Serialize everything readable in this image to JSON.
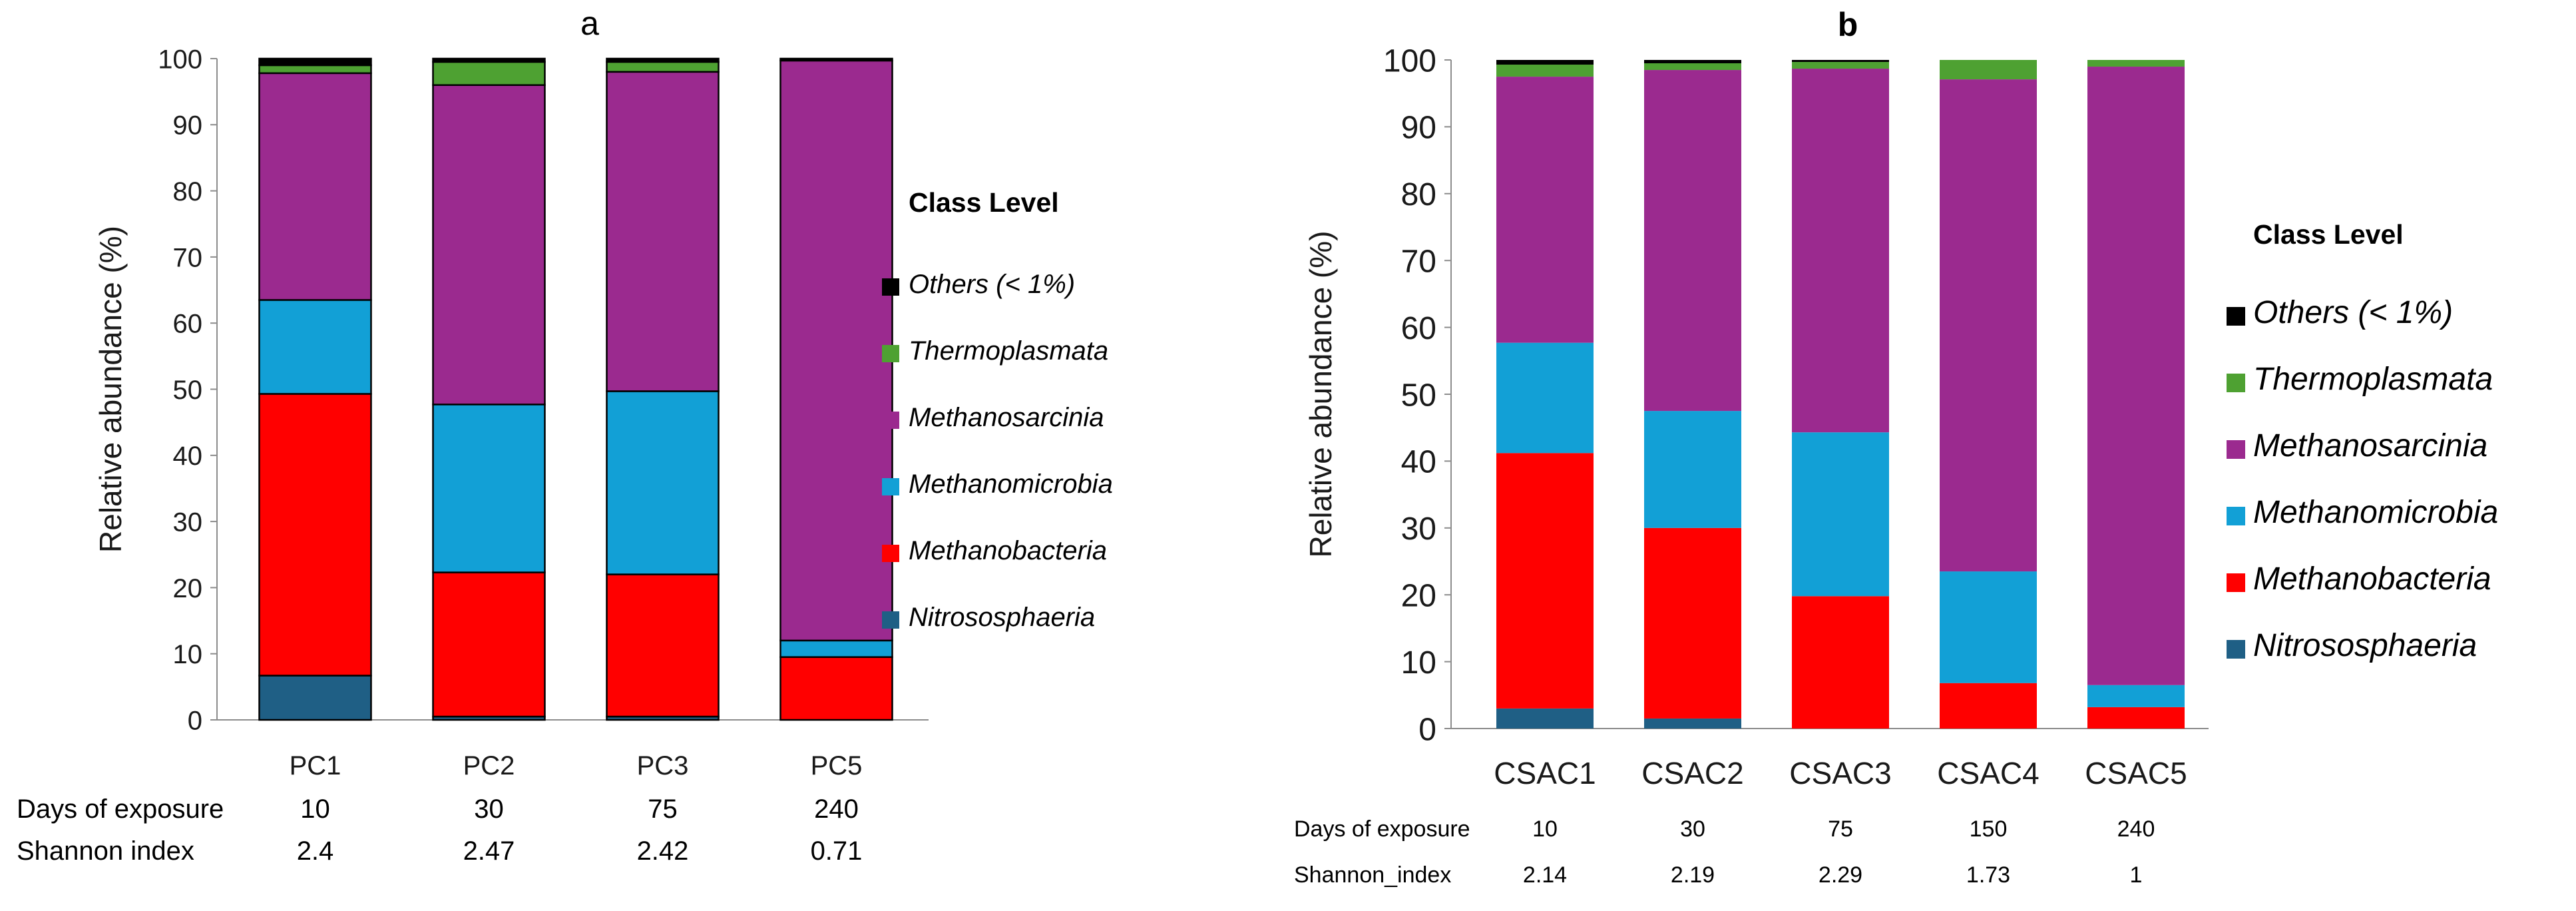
{
  "chart_data": [
    {
      "panel": "a",
      "type": "bar",
      "stacked": true,
      "title": "a",
      "ylabel": "Relative abundance (%)",
      "ylim": [
        0,
        100
      ],
      "yticks": [
        0,
        10,
        20,
        30,
        40,
        50,
        60,
        70,
        80,
        90,
        100
      ],
      "categories": [
        "PC1",
        "PC2",
        "PC3",
        "PC5"
      ],
      "legend_title": "Class Level",
      "legend_position": "right",
      "series": [
        {
          "name": "Nitrososphaeria",
          "color": "#1f5f85",
          "values": [
            6.7,
            0.5,
            0.5,
            0.0
          ]
        },
        {
          "name": "Methanobacteria",
          "color": "#ff0000",
          "values": [
            42.6,
            21.8,
            21.5,
            9.5
          ]
        },
        {
          "name": "Methanomicrobia",
          "color": "#12a0d6",
          "values": [
            14.2,
            25.4,
            27.7,
            2.5
          ]
        },
        {
          "name": "Methanosarcinia",
          "color": "#9b2a8f",
          "values": [
            34.3,
            48.3,
            48.3,
            87.7
          ]
        },
        {
          "name": "Thermoplasmata",
          "color": "#4ea132",
          "values": [
            1.2,
            3.5,
            1.5,
            0.0
          ]
        },
        {
          "name": "Others (< 1%)",
          "color": "#000000",
          "values": [
            1.0,
            0.5,
            0.5,
            0.3
          ]
        }
      ],
      "table_rows": [
        {
          "label": "Days of exposure",
          "values": [
            "10",
            "30",
            "75",
            "240"
          ]
        },
        {
          "label": "Shannon index",
          "values": [
            "2.4",
            "2.47",
            "2.42",
            "0.71"
          ]
        }
      ]
    },
    {
      "panel": "b",
      "type": "bar",
      "stacked": true,
      "title": "b",
      "ylabel": "Relative abundance (%)",
      "ylim": [
        0,
        100
      ],
      "yticks": [
        0,
        10,
        20,
        30,
        40,
        50,
        60,
        70,
        80,
        90,
        100
      ],
      "categories": [
        "CSAC1",
        "CSAC2",
        "CSAC3",
        "CSAC4",
        "CSAC5"
      ],
      "legend_title": "Class Level",
      "legend_position": "right",
      "series": [
        {
          "name": "Nitrososphaeria",
          "color": "#1f5f85",
          "values": [
            3.0,
            1.5,
            0.0,
            0.0,
            0.0
          ]
        },
        {
          "name": "Methanobacteria",
          "color": "#ff0000",
          "values": [
            38.2,
            28.5,
            19.8,
            6.8,
            3.2
          ]
        },
        {
          "name": "Methanomicrobia",
          "color": "#12a0d6",
          "values": [
            16.5,
            17.5,
            24.5,
            16.7,
            3.3
          ]
        },
        {
          "name": "Methanosarcinia",
          "color": "#9b2a8f",
          "values": [
            39.8,
            51.0,
            54.4,
            73.6,
            92.5
          ]
        },
        {
          "name": "Thermoplasmata",
          "color": "#4ea132",
          "values": [
            1.8,
            1.0,
            1.0,
            2.9,
            1.0
          ]
        },
        {
          "name": "Others (< 1%)",
          "color": "#000000",
          "values": [
            0.7,
            0.5,
            0.3,
            0.0,
            0.0
          ]
        }
      ],
      "table_rows": [
        {
          "label": "Days of exposure",
          "values": [
            "10",
            "30",
            "75",
            "150",
            "240"
          ]
        },
        {
          "label": "Shannon_index",
          "values": [
            "2.14",
            "2.19",
            "2.29",
            "1.73",
            "1"
          ]
        }
      ]
    }
  ]
}
